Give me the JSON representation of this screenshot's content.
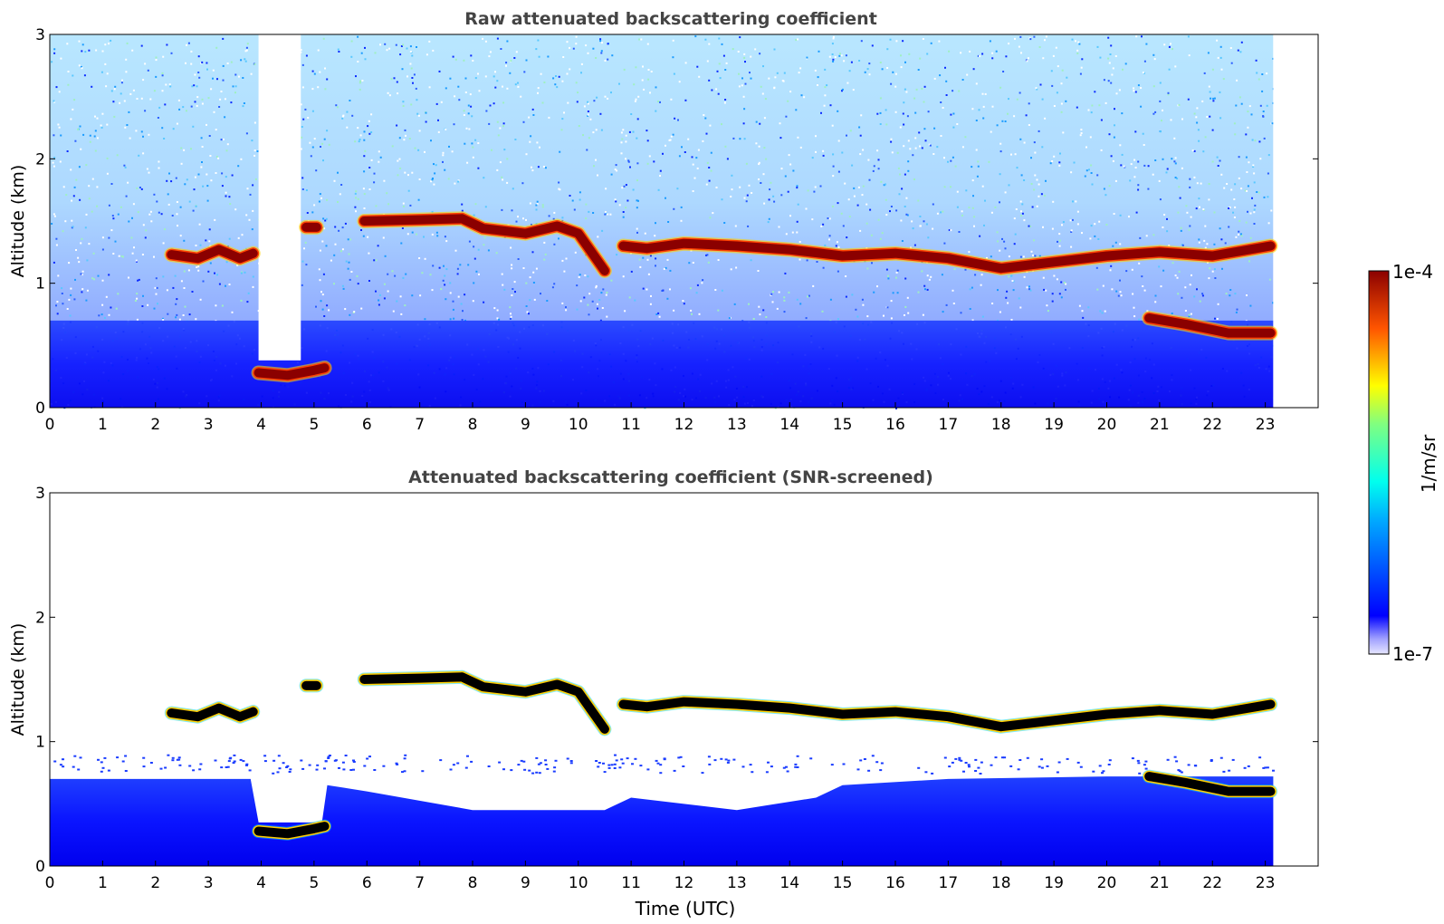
{
  "figure": {
    "cbar_label": "1/m/sr",
    "cbar_top_label": "1e-4",
    "cbar_bottom_label": "1e-7",
    "xlabel": "Time (UTC)"
  },
  "chart_data": [
    {
      "type": "heatmap",
      "title": "Raw attenuated backscattering coefficient",
      "xlabel": "",
      "ylabel": "Altitude (km)",
      "xlim": [
        0,
        24
      ],
      "ylim": [
        0,
        3
      ],
      "x_ticks": [
        0,
        1,
        2,
        3,
        4,
        5,
        6,
        7,
        8,
        9,
        10,
        11,
        12,
        13,
        14,
        15,
        16,
        17,
        18,
        19,
        20,
        21,
        22,
        23
      ],
      "y_ticks": [
        0,
        1,
        2,
        3
      ],
      "data_end_hour": 23.15,
      "colorbar": {
        "min": "1e-7",
        "max": "1e-4",
        "scale": "log",
        "colormap": "jet",
        "label": "1/m/sr"
      },
      "cloud_layers": [
        {
          "name": "",
          "points": [
            [
              2.3,
              1.23
            ],
            [
              2.8,
              1.2
            ],
            [
              3.2,
              1.27
            ],
            [
              3.6,
              1.2
            ],
            [
              3.85,
              1.24
            ]
          ]
        },
        {
          "name": "",
          "points": [
            [
              3.95,
              0.28
            ],
            [
              4.5,
              0.26
            ],
            [
              5.0,
              0.3
            ],
            [
              5.2,
              0.32
            ]
          ]
        },
        {
          "name": "",
          "points": [
            [
              4.85,
              1.45
            ],
            [
              5.05,
              1.45
            ]
          ]
        },
        {
          "name": "",
          "points": [
            [
              5.95,
              1.5
            ],
            [
              7.0,
              1.51
            ],
            [
              7.8,
              1.52
            ],
            [
              8.2,
              1.44
            ],
            [
              9.0,
              1.4
            ],
            [
              9.6,
              1.46
            ],
            [
              10.0,
              1.4
            ],
            [
              10.5,
              1.1
            ]
          ]
        },
        {
          "name": "",
          "points": [
            [
              10.85,
              1.3
            ],
            [
              11.3,
              1.28
            ],
            [
              12.0,
              1.32
            ],
            [
              13.0,
              1.3
            ],
            [
              14.0,
              1.27
            ],
            [
              15.0,
              1.22
            ],
            [
              16.0,
              1.24
            ],
            [
              17.0,
              1.2
            ],
            [
              18.0,
              1.12
            ],
            [
              19.0,
              1.17
            ],
            [
              20.0,
              1.22
            ],
            [
              21.0,
              1.25
            ],
            [
              22.0,
              1.22
            ],
            [
              23.1,
              1.3
            ]
          ]
        },
        {
          "name": "",
          "points": [
            [
              20.8,
              0.72
            ],
            [
              21.5,
              0.67
            ],
            [
              22.3,
              0.6
            ],
            [
              23.1,
              0.6
            ]
          ]
        }
      ]
    },
    {
      "type": "heatmap",
      "title": "Attenuated backscattering coefficient (SNR-screened)",
      "xlabel": "Time (UTC)",
      "ylabel": "Altitude (km)",
      "xlim": [
        0,
        24
      ],
      "ylim": [
        0,
        3
      ],
      "x_ticks": [
        0,
        1,
        2,
        3,
        4,
        5,
        6,
        7,
        8,
        9,
        10,
        11,
        12,
        13,
        14,
        15,
        16,
        17,
        18,
        19,
        20,
        21,
        22,
        23
      ],
      "y_ticks": [
        0,
        1,
        2,
        3
      ],
      "data_end_hour": 23.15,
      "colorbar": {
        "min": "1e-7",
        "max": "1e-4",
        "scale": "log",
        "colormap": "jet",
        "label": "1/m/sr"
      },
      "boundary_layer_top": [
        [
          0,
          0.7
        ],
        [
          3.8,
          0.7
        ],
        [
          3.95,
          0.35
        ],
        [
          5.15,
          0.35
        ],
        [
          5.25,
          0.65
        ],
        [
          6.0,
          0.6
        ],
        [
          8.0,
          0.45
        ],
        [
          10.5,
          0.45
        ],
        [
          11.0,
          0.55
        ],
        [
          13.0,
          0.45
        ],
        [
          14.5,
          0.55
        ],
        [
          15.0,
          0.65
        ],
        [
          17.0,
          0.7
        ],
        [
          20.0,
          0.72
        ],
        [
          21.0,
          0.72
        ],
        [
          23.15,
          0.72
        ]
      ],
      "cloud_layers": [
        {
          "name": "",
          "points": [
            [
              2.3,
              1.23
            ],
            [
              2.8,
              1.2
            ],
            [
              3.2,
              1.27
            ],
            [
              3.6,
              1.2
            ],
            [
              3.85,
              1.24
            ]
          ]
        },
        {
          "name": "",
          "points": [
            [
              3.95,
              0.28
            ],
            [
              4.5,
              0.26
            ],
            [
              5.0,
              0.3
            ],
            [
              5.2,
              0.32
            ]
          ]
        },
        {
          "name": "",
          "points": [
            [
              4.85,
              1.45
            ],
            [
              5.05,
              1.45
            ]
          ]
        },
        {
          "name": "",
          "points": [
            [
              5.95,
              1.5
            ],
            [
              7.0,
              1.51
            ],
            [
              7.8,
              1.52
            ],
            [
              8.2,
              1.44
            ],
            [
              9.0,
              1.4
            ],
            [
              9.6,
              1.46
            ],
            [
              10.0,
              1.4
            ],
            [
              10.5,
              1.1
            ]
          ]
        },
        {
          "name": "",
          "points": [
            [
              10.85,
              1.3
            ],
            [
              11.3,
              1.28
            ],
            [
              12.0,
              1.32
            ],
            [
              13.0,
              1.3
            ],
            [
              14.0,
              1.27
            ],
            [
              15.0,
              1.22
            ],
            [
              16.0,
              1.24
            ],
            [
              17.0,
              1.2
            ],
            [
              18.0,
              1.12
            ],
            [
              19.0,
              1.17
            ],
            [
              20.0,
              1.22
            ],
            [
              21.0,
              1.25
            ],
            [
              22.0,
              1.22
            ],
            [
              23.1,
              1.3
            ]
          ]
        },
        {
          "name": "",
          "points": [
            [
              20.8,
              0.72
            ],
            [
              21.5,
              0.67
            ],
            [
              22.3,
              0.6
            ],
            [
              23.1,
              0.6
            ]
          ]
        }
      ]
    }
  ]
}
